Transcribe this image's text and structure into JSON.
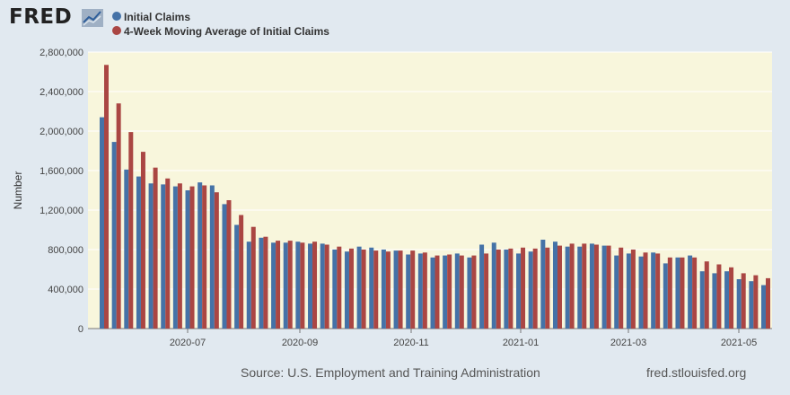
{
  "header": {
    "logo_text": "FRED",
    "logo_icon": "chart-line-icon"
  },
  "legend": [
    {
      "label": "Initial Claims",
      "color": "#4572a7"
    },
    {
      "label": "4-Week Moving Average of Initial Claims",
      "color": "#aa4643"
    }
  ],
  "footer": {
    "source": "Source: U.S. Employment and Training Administration",
    "site": "fred.stlouisfed.org"
  },
  "chart_data": {
    "type": "bar",
    "ylabel": "Number",
    "ylim": [
      0,
      2800000
    ],
    "yticks": [
      "0",
      "400,000",
      "800,000",
      "1,200,000",
      "1,600,000",
      "2,000,000",
      "2,400,000",
      "2,800,000"
    ],
    "xticks": [
      "2020-07",
      "2020-09",
      "2020-11",
      "2021-01",
      "2021-03",
      "2021-05"
    ],
    "grid": true,
    "plot_background": "#f8f6dc",
    "series": [
      {
        "name": "Initial Claims",
        "color": "#4572a7",
        "values": [
          2140000,
          1890000,
          1610000,
          1540000,
          1470000,
          1460000,
          1440000,
          1400000,
          1480000,
          1450000,
          1260000,
          1050000,
          880000,
          920000,
          870000,
          870000,
          880000,
          860000,
          860000,
          800000,
          780000,
          830000,
          820000,
          800000,
          790000,
          750000,
          760000,
          720000,
          740000,
          760000,
          720000,
          850000,
          870000,
          800000,
          760000,
          780000,
          900000,
          880000,
          830000,
          830000,
          860000,
          840000,
          740000,
          760000,
          730000,
          770000,
          660000,
          720000,
          740000,
          580000,
          560000,
          580000,
          500000,
          480000,
          440000
        ]
      },
      {
        "name": "4-Week Moving Average of Initial Claims",
        "color": "#aa4643",
        "values": [
          2670000,
          2280000,
          1990000,
          1790000,
          1630000,
          1520000,
          1470000,
          1440000,
          1450000,
          1380000,
          1300000,
          1150000,
          1030000,
          930000,
          890000,
          890000,
          870000,
          880000,
          850000,
          830000,
          810000,
          800000,
          790000,
          780000,
          790000,
          790000,
          770000,
          740000,
          750000,
          740000,
          740000,
          760000,
          800000,
          810000,
          820000,
          810000,
          820000,
          840000,
          860000,
          860000,
          850000,
          840000,
          820000,
          800000,
          770000,
          760000,
          720000,
          720000,
          720000,
          680000,
          650000,
          620000,
          560000,
          540000,
          510000
        ]
      }
    ]
  }
}
